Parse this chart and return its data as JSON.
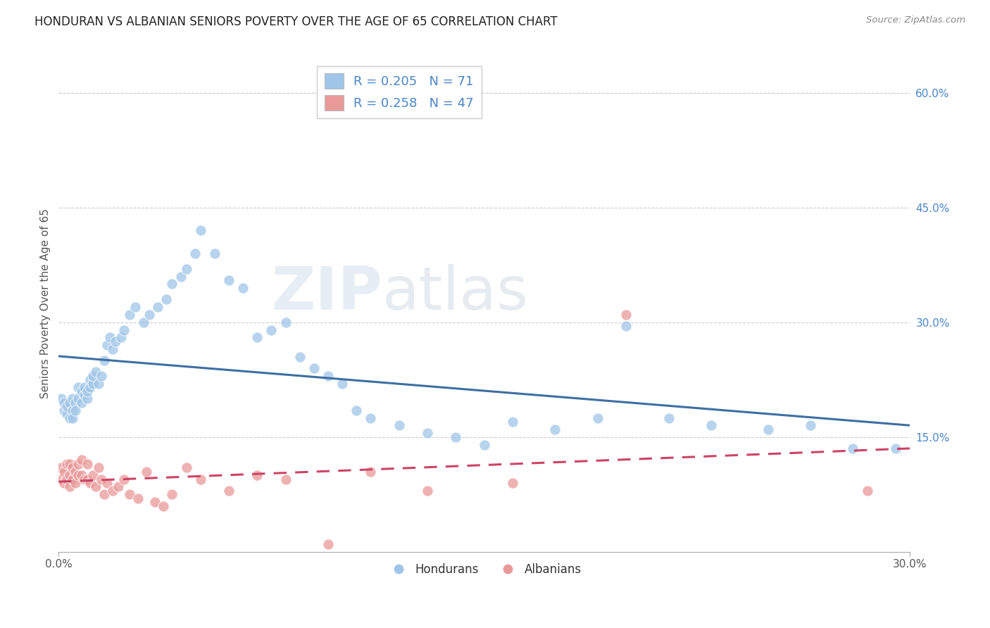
{
  "title": "HONDURAN VS ALBANIAN SENIORS POVERTY OVER THE AGE OF 65 CORRELATION CHART",
  "source": "Source: ZipAtlas.com",
  "ylabel": "Seniors Poverty Over the Age of 65",
  "xlim": [
    0.0,
    0.3
  ],
  "ylim": [
    0.0,
    0.65
  ],
  "yticks_right": [
    0.15,
    0.3,
    0.45,
    0.6
  ],
  "yticklabels_right": [
    "15.0%",
    "30.0%",
    "45.0%",
    "60.0%"
  ],
  "honduran_color": "#9fc5e8",
  "albanian_color": "#ea9999",
  "honduran_line_color": "#3d6fa3",
  "albanian_line_color": "#cc4466",
  "legend_text_color": "#4a86c8",
  "watermark_left": "ZIP",
  "watermark_right": "atlas",
  "hondurans_x": [
    0.001,
    0.002,
    0.002,
    0.003,
    0.003,
    0.004,
    0.004,
    0.005,
    0.005,
    0.005,
    0.006,
    0.006,
    0.007,
    0.007,
    0.008,
    0.008,
    0.009,
    0.009,
    0.01,
    0.01,
    0.011,
    0.011,
    0.012,
    0.012,
    0.013,
    0.014,
    0.015,
    0.016,
    0.017,
    0.018,
    0.019,
    0.02,
    0.022,
    0.023,
    0.025,
    0.027,
    0.03,
    0.032,
    0.035,
    0.038,
    0.04,
    0.043,
    0.045,
    0.048,
    0.05,
    0.055,
    0.06,
    0.065,
    0.07,
    0.075,
    0.08,
    0.085,
    0.09,
    0.095,
    0.1,
    0.105,
    0.11,
    0.12,
    0.13,
    0.14,
    0.15,
    0.16,
    0.175,
    0.19,
    0.2,
    0.215,
    0.23,
    0.25,
    0.265,
    0.28,
    0.295
  ],
  "hondurans_y": [
    0.2,
    0.185,
    0.195,
    0.18,
    0.19,
    0.175,
    0.195,
    0.185,
    0.175,
    0.2,
    0.195,
    0.185,
    0.2,
    0.215,
    0.195,
    0.21,
    0.205,
    0.215,
    0.2,
    0.21,
    0.215,
    0.225,
    0.22,
    0.23,
    0.235,
    0.22,
    0.23,
    0.25,
    0.27,
    0.28,
    0.265,
    0.275,
    0.28,
    0.29,
    0.31,
    0.32,
    0.3,
    0.31,
    0.32,
    0.33,
    0.35,
    0.36,
    0.37,
    0.39,
    0.42,
    0.39,
    0.355,
    0.345,
    0.28,
    0.29,
    0.3,
    0.255,
    0.24,
    0.23,
    0.22,
    0.185,
    0.175,
    0.165,
    0.155,
    0.15,
    0.14,
    0.17,
    0.16,
    0.175,
    0.295,
    0.175,
    0.165,
    0.16,
    0.165,
    0.135,
    0.135
  ],
  "albanians_x": [
    0.001,
    0.001,
    0.002,
    0.002,
    0.003,
    0.003,
    0.004,
    0.004,
    0.004,
    0.005,
    0.005,
    0.006,
    0.006,
    0.007,
    0.007,
    0.008,
    0.008,
    0.009,
    0.01,
    0.01,
    0.011,
    0.012,
    0.013,
    0.014,
    0.015,
    0.016,
    0.017,
    0.019,
    0.021,
    0.023,
    0.025,
    0.028,
    0.031,
    0.034,
    0.037,
    0.04,
    0.045,
    0.05,
    0.06,
    0.07,
    0.08,
    0.095,
    0.11,
    0.13,
    0.16,
    0.2,
    0.285
  ],
  "albanians_y": [
    0.095,
    0.11,
    0.09,
    0.105,
    0.095,
    0.115,
    0.085,
    0.1,
    0.115,
    0.095,
    0.11,
    0.09,
    0.105,
    0.1,
    0.115,
    0.1,
    0.12,
    0.095,
    0.095,
    0.115,
    0.09,
    0.1,
    0.085,
    0.11,
    0.095,
    0.075,
    0.09,
    0.08,
    0.085,
    0.095,
    0.075,
    0.07,
    0.105,
    0.065,
    0.06,
    0.075,
    0.11,
    0.095,
    0.08,
    0.1,
    0.095,
    0.01,
    0.105,
    0.08,
    0.09,
    0.31,
    0.08
  ]
}
